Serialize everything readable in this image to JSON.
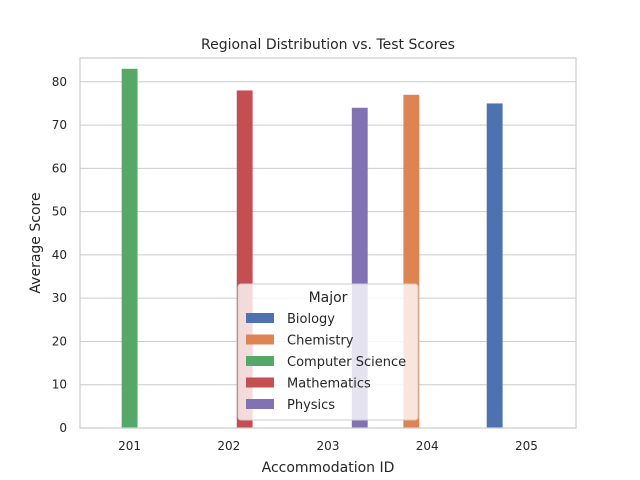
{
  "chart_data": {
    "type": "bar",
    "title": "Regional Distribution vs. Test Scores",
    "xlabel": "Accommodation ID",
    "ylabel": "Average Score",
    "categories": [
      "201",
      "202",
      "203",
      "204",
      "205"
    ],
    "ylim": [
      0,
      85.5
    ],
    "yticks": [
      0,
      10,
      20,
      30,
      40,
      50,
      60,
      70,
      80
    ],
    "grid": true,
    "legend": {
      "title": "Major",
      "placement": "lower-center"
    },
    "series": [
      {
        "name": "Biology",
        "color": "#4c72b0",
        "values": [
          null,
          null,
          null,
          null,
          75
        ]
      },
      {
        "name": "Chemistry",
        "color": "#dd8452",
        "values": [
          null,
          null,
          null,
          77,
          null
        ]
      },
      {
        "name": "Computer Science",
        "color": "#55a868",
        "values": [
          83,
          null,
          null,
          null,
          null
        ]
      },
      {
        "name": "Mathematics",
        "color": "#c44e52",
        "values": [
          null,
          78,
          null,
          null,
          null
        ]
      },
      {
        "name": "Physics",
        "color": "#8172b3",
        "values": [
          null,
          null,
          74,
          null,
          null
        ]
      }
    ]
  }
}
